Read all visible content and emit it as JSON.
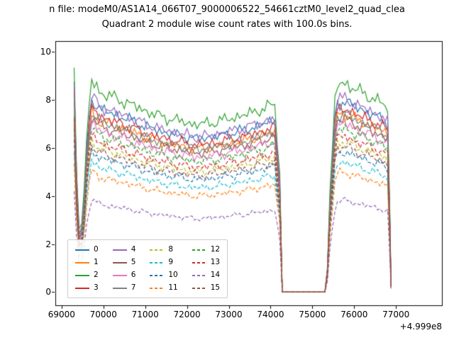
{
  "title": {
    "line1": "n file: modeM0/AS1A14_066T07_9000006522_54661cztM0_level2_quad_clea",
    "line2": "Quadrant 2 module wise count rates with 100.0s bins."
  },
  "chart_data": {
    "type": "line",
    "title": "Quadrant 2 module wise count rates with 100.0s bins.",
    "xlabel": "",
    "ylabel": "",
    "x_offset": "+4.999e8",
    "xlim": [
      68850,
      78100
    ],
    "ylim": [
      -0.55,
      10.45
    ],
    "x_ticks": [
      69000,
      70000,
      71000,
      72000,
      73000,
      74000,
      75000,
      76000,
      77000
    ],
    "y_ticks": [
      0,
      2,
      4,
      6,
      8,
      10
    ],
    "grid": false,
    "legend_position": "lower left",
    "x": [
      69300,
      69360,
      69430,
      69520,
      69620,
      69720,
      69900,
      70200,
      70600,
      71000,
      71400,
      71800,
      72200,
      72600,
      73000,
      73400,
      73800,
      74100,
      74220,
      74280,
      75340,
      75420,
      75560,
      75800,
      76100,
      76400,
      76650,
      76820,
      76880
    ],
    "profile": [
      1.16,
      0.62,
      0.27,
      0.42,
      0.88,
      1.07,
      1.02,
      0.99,
      0.96,
      0.92,
      0.89,
      0.87,
      0.85,
      0.86,
      0.88,
      0.9,
      0.93,
      0.95,
      0.6,
      0.0,
      0.0,
      0.5,
      1.05,
      1.06,
      1.02,
      0.99,
      0.96,
      0.93,
      0.04
    ],
    "series": [
      {
        "name": "0",
        "color": "#1f77b4",
        "dash": "solid",
        "scale": 7.5
      },
      {
        "name": "1",
        "color": "#ff7f0e",
        "dash": "solid",
        "scale": 7.0
      },
      {
        "name": "2",
        "color": "#2ca02c",
        "dash": "solid",
        "scale": 8.2
      },
      {
        "name": "3",
        "color": "#d62728",
        "dash": "solid",
        "scale": 7.2
      },
      {
        "name": "4",
        "color": "#9467bd",
        "dash": "solid",
        "scale": 7.6
      },
      {
        "name": "5",
        "color": "#8c564b",
        "dash": "solid",
        "scale": 6.8
      },
      {
        "name": "6",
        "color": "#e377c2",
        "dash": "solid",
        "scale": 6.6
      },
      {
        "name": "7",
        "color": "#7f7f7f",
        "dash": "solid",
        "scale": 7.0
      },
      {
        "name": "8",
        "color": "#bcbd22",
        "dash": "dashed",
        "scale": 5.9
      },
      {
        "name": "9",
        "color": "#17becf",
        "dash": "dashed",
        "scale": 5.1
      },
      {
        "name": "10",
        "color": "#1f77b4",
        "dash": "dashed",
        "scale": 5.5
      },
      {
        "name": "11",
        "color": "#ff7f0e",
        "dash": "dashed",
        "scale": 4.7
      },
      {
        "name": "12",
        "color": "#2ca02c",
        "dash": "dashed",
        "scale": 6.4
      },
      {
        "name": "13",
        "color": "#d62728",
        "dash": "dashed",
        "scale": 6.1
      },
      {
        "name": "14",
        "color": "#9467bd",
        "dash": "dashed",
        "scale": 3.6
      },
      {
        "name": "15",
        "color": "#8c564b",
        "dash": "dashed",
        "scale": 5.7
      }
    ]
  }
}
